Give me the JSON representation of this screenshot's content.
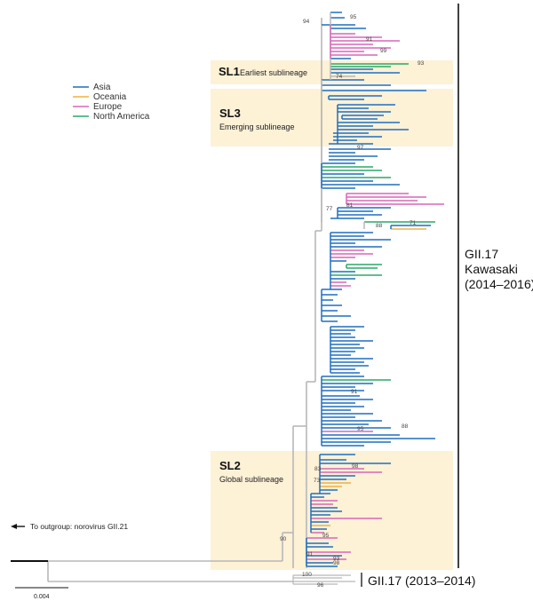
{
  "colors": {
    "asia": "#1f6fc0",
    "oceania": "#f0b040",
    "europe": "#d966b8",
    "north_america": "#2aa868",
    "internal": "#b8b8b8",
    "box_fill": "#fdf1d6"
  },
  "legend": [
    {
      "key": "asia",
      "label": "Asia"
    },
    {
      "key": "oceania",
      "label": "Oceania"
    },
    {
      "key": "europe",
      "label": "Europe"
    },
    {
      "key": "north_america",
      "label": "North America"
    }
  ],
  "sublineages": {
    "sl1": {
      "title": "SL1",
      "subtitle": "Earliest sublineage"
    },
    "sl3": {
      "title": "SL3",
      "subtitle": "Emerging sublineage"
    },
    "sl2": {
      "title": "SL2",
      "subtitle": "Global sublineage"
    }
  },
  "clades": {
    "kawasaki": {
      "line1": "GII.17",
      "line2": "Kawasaki",
      "line3": "(2014–2016)"
    },
    "early": {
      "label": "GII.17 (2013–2014)"
    }
  },
  "outgroup": {
    "label": "To outgroup: norovirus GII.21"
  },
  "scale_bar": {
    "label": "0.004"
  },
  "bootstrap_values": [
    "94",
    "95",
    "91",
    "99",
    "93",
    "74",
    "97",
    "77",
    "81",
    "71",
    "88",
    "91",
    "88",
    "95",
    "83",
    "98",
    "73",
    "90",
    "95",
    "91",
    "93",
    "98",
    "100",
    "96"
  ]
}
